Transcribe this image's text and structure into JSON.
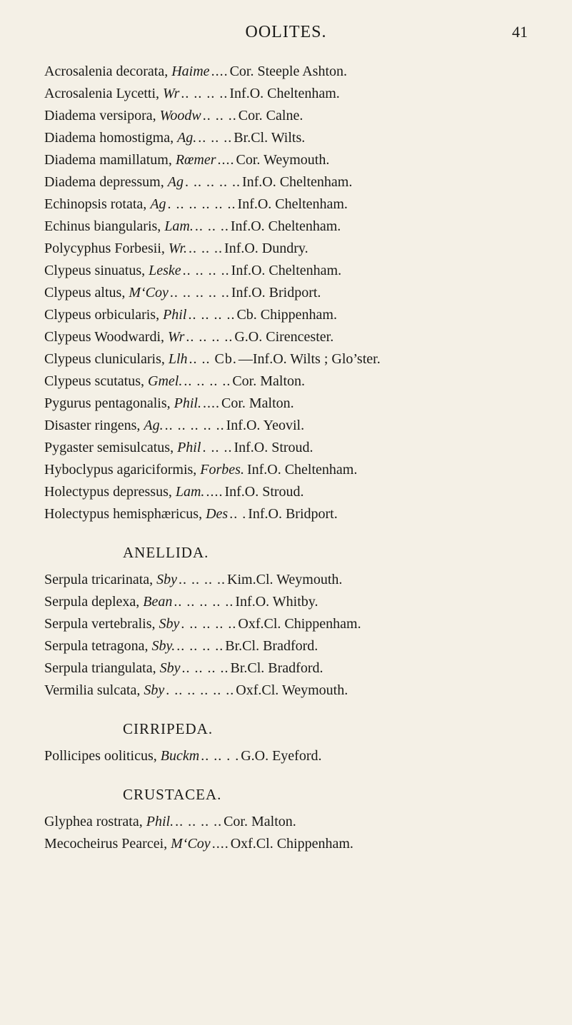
{
  "page": {
    "running_head": "OOLITES.",
    "number": "41",
    "background_color": "#f4f0e6",
    "text_color": "#1a1a18",
    "font_family": "Georgia, 'Times New Roman', serif",
    "base_fontsize_pt": 15
  },
  "sections": [
    {
      "title": null,
      "entries": [
        {
          "name": "Acrosalenia decorata,",
          "auth": "Haime",
          "dots": " ....",
          "data": "Cor. Steeple Ashton."
        },
        {
          "name": "Acrosalenia Lycetti,",
          "auth": "Wr",
          "dots": ".. .. .. ..",
          "data": "Inf.O. Cheltenham."
        },
        {
          "name": "Diadema versipora,",
          "auth": "Woodw",
          "dots": ".. .. ..",
          "data": "Cor. Calne."
        },
        {
          "name": "Diadema homostigma,",
          "auth": "Ag.",
          "dots": " .. .. ..",
          "data": "Br.Cl. Wilts."
        },
        {
          "name": "Diadema mamillatum,",
          "auth": "Rœmer",
          "dots": " ....",
          "data": "Cor. Weymouth."
        },
        {
          "name": "Diadema depressum,",
          "auth": "Ag",
          "dots": ". .. .. .. ..",
          "data": "Inf.O. Cheltenham."
        },
        {
          "name": "Echinopsis rotata,",
          "auth": "Ag",
          "dots": ". .. .. .. .. ..",
          "data": "Inf.O. Cheltenham."
        },
        {
          "name": "Echinus biangularis,",
          "auth": "Lam.",
          "dots": " .. .. ..",
          "data": "Inf.O. Cheltenham."
        },
        {
          "name": "Polycyphus Forbesii,",
          "auth": "Wr.",
          "dots": " .. .. ..",
          "data": "Inf.O. Dundry."
        },
        {
          "name": "Clypeus sinuatus,",
          "auth": "Leske",
          "dots": " .. .. .. ..",
          "data": "Inf.O. Cheltenham."
        },
        {
          "name": "Clypeus altus,",
          "auth": "M‘Coy",
          "dots": " .. .. .. .. ..",
          "data": "Inf.O. Bridport."
        },
        {
          "name": "Clypeus orbicularis,",
          "auth": "Phil",
          "dots": ".. .. .. ..",
          "data": "Cb. Chippenham."
        },
        {
          "name": "Clypeus Woodwardi,",
          "auth": "Wr",
          "dots": ".. .. .. ..",
          "data": "G.O. Cirencester."
        },
        {
          "name": "Clypeus clunicularis,",
          "auth": "Llh",
          "dots": ".. .. Cb.",
          "data": "—Inf.O. Wilts ; Glo’ster."
        },
        {
          "name": "Clypeus scutatus,",
          "auth": "Gmel.",
          "dots": " .. .. .. ..",
          "data": "Cor. Malton."
        },
        {
          "name": "Pygurus pentagonalis,",
          "auth": "Phil.",
          "dots": " ....",
          "data": "Cor. Malton."
        },
        {
          "name": "Disaster ringens,",
          "auth": "Ag.",
          "dots": " .. .. .. .. ..",
          "data": "Inf.O. Yeovil."
        },
        {
          "name": "Pygaster semisulcatus,",
          "auth": "Phil",
          "dots": ". .. ..",
          "data": "Inf.O. Stroud."
        },
        {
          "name": "Hyboclypus agariciformis,",
          "auth": "Forbes.",
          "dots": "",
          "data": "Inf.O. Cheltenham."
        },
        {
          "name": "Holectypus depressus,",
          "auth": "Lam.",
          "dots": " ....",
          "data": "Inf.O. Stroud."
        },
        {
          "name": "Holectypus hemisphæricus,",
          "auth": "Des",
          "dots": ".. .",
          "data": "Inf.O. Bridport."
        }
      ]
    },
    {
      "title": "ANELLIDA.",
      "entries": [
        {
          "name": "Serpula tricarinata,",
          "auth": "Sby",
          "dots": ".. .. .. ..",
          "data": "Kim.Cl. Weymouth."
        },
        {
          "name": "Serpula deplexa,",
          "auth": "Bean",
          "dots": " .. .. .. .. ..",
          "data": "Inf.O. Whitby."
        },
        {
          "name": "Serpula vertebralis,",
          "auth": "Sby",
          "dots": ". .. .. .. ..",
          "data": "Oxf.Cl. Chippenham."
        },
        {
          "name": "Serpula tetragona,",
          "auth": "Sby.",
          "dots": " .. .. .. ..",
          "data": "Br.Cl. Bradford."
        },
        {
          "name": "Serpula triangulata,",
          "auth": "Sby",
          "dots": ".. .. .. ..",
          "data": "Br.Cl. Bradford."
        },
        {
          "name": "Vermilia sulcata,",
          "auth": "Sby",
          "dots": ". .. .. .. .. ..",
          "data": "Oxf.Cl. Weymouth."
        }
      ]
    },
    {
      "title": "CIRRIPEDA.",
      "entries": [
        {
          "name": "Pollicipes ooliticus,",
          "auth": "Buckm",
          "dots": ".. .. .  .",
          "data": "G.O. Eyeford."
        }
      ]
    },
    {
      "title": "CRUSTACEA.",
      "entries": [
        {
          "name": "Glyphea rostrata,",
          "auth": "Phil.",
          "dots": " .. .. .. ..",
          "data": "Cor. Malton."
        },
        {
          "name": "Mecocheirus Pearcei,",
          "auth": "M‘Coy",
          "dots": " ....",
          "data": "Oxf.Cl. Chippenham."
        }
      ]
    }
  ]
}
